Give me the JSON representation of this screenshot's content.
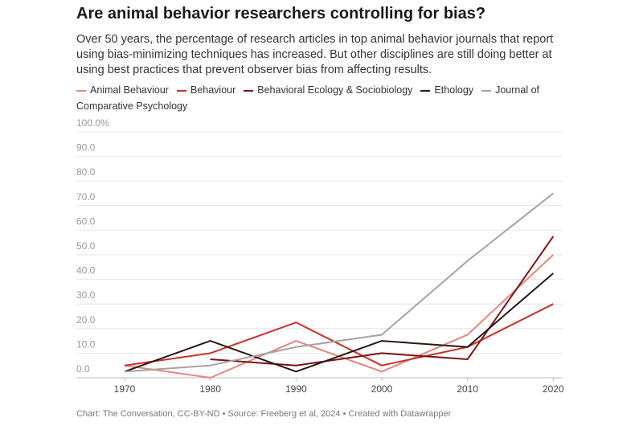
{
  "title": "Are animal behavior researchers controlling for bias?",
  "subtitle": "Over 50 years, the percentage of research articles in top animal behavior journals that report using bias-minimizing techniques has increased. But other disciplines are still doing better at using best practices that prevent observer bias from affecting results.",
  "footer": "Chart: The Conversation, CC-BY-ND • Source: Freeberg et al, 2024 • Created with Datawrapper",
  "chart_data": {
    "type": "line",
    "x": [
      1970,
      1980,
      1990,
      2000,
      2010,
      2020
    ],
    "xlim": [
      1964,
      2021
    ],
    "xticks": [
      1970,
      1980,
      1990,
      2000,
      2010,
      2020
    ],
    "ylim": [
      0,
      100
    ],
    "yticks": [
      {
        "value": 0,
        "label": "0.0"
      },
      {
        "value": 10,
        "label": "10.0"
      },
      {
        "value": 20,
        "label": "20.0"
      },
      {
        "value": 30,
        "label": "30.0"
      },
      {
        "value": 40,
        "label": "40.0"
      },
      {
        "value": 50,
        "label": "50.0"
      },
      {
        "value": 60,
        "label": "60.0"
      },
      {
        "value": 70,
        "label": "70.0"
      },
      {
        "value": 80,
        "label": "80.0"
      },
      {
        "value": 90,
        "label": "90.0"
      },
      {
        "value": 100,
        "label": "100.0%"
      }
    ],
    "grid": true,
    "series": [
      {
        "name": "Animal Behaviour",
        "color": "#e8847c",
        "values": [
          5,
          0,
          15,
          2.5,
          17.5,
          50
        ]
      },
      {
        "name": "Behaviour",
        "color": "#c9302c",
        "values": [
          5,
          10,
          22.5,
          5,
          12.5,
          30
        ]
      },
      {
        "name": "Behavioral Ecology & Sociobiology",
        "color": "#7d1216",
        "values": [
          null,
          7.5,
          5,
          10,
          7.5,
          57.5
        ]
      },
      {
        "name": "Ethology",
        "color": "#2b1616",
        "values": [
          2.5,
          15,
          2.5,
          15,
          12.5,
          42.5
        ]
      },
      {
        "name": "Journal of Comparative Psychology",
        "color": "#a3a3a3",
        "values": [
          2.5,
          5,
          12.5,
          17.5,
          47.5,
          75
        ]
      }
    ]
  }
}
